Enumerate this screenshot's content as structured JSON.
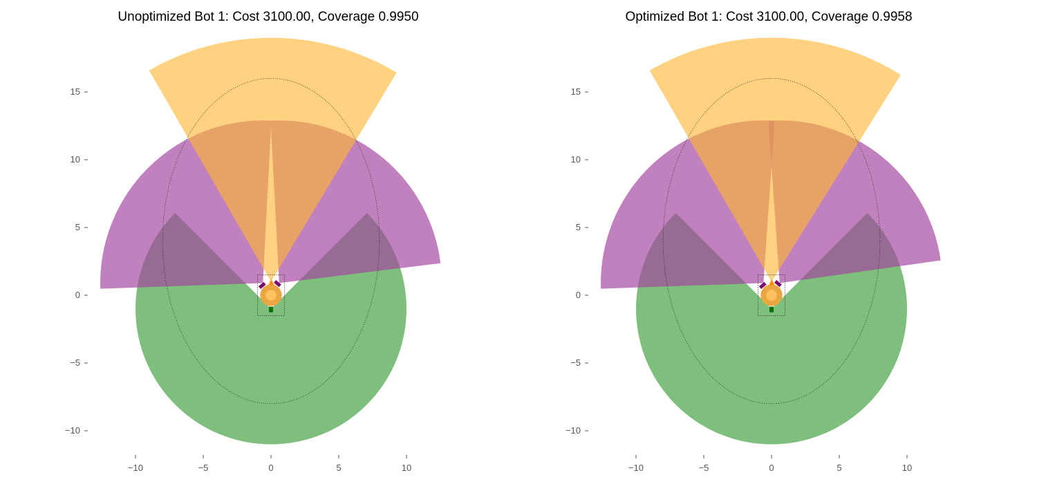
{
  "chart_data": [
    {
      "type": "sensor-coverage-plot",
      "title": "Unoptimized Bot 1: Cost 3100.00, Coverage 0.9950",
      "xlim": [
        -12.2,
        12.2
      ],
      "ylim": [
        -12.4,
        19.6
      ],
      "xticks": [
        -10,
        -5,
        0,
        5,
        10
      ],
      "xtick_labels": [
        "−10",
        "−5",
        "0",
        "5",
        "10"
      ],
      "yticks": [
        -10,
        -5,
        0,
        5,
        10,
        15
      ],
      "ytick_labels": [
        "−10",
        "−5",
        "0",
        "5",
        "10",
        "15"
      ],
      "grid": false,
      "target_ellipse": {
        "center": [
          0,
          4
        ],
        "rx": 8,
        "ry": 12,
        "style": "dotted"
      },
      "body_box": {
        "x0": -1,
        "x1": 1,
        "y0": -1.5,
        "y1": 1.5
      },
      "body_circles": [
        {
          "center": [
            0,
            0
          ],
          "r": 0.8,
          "color": "#e9a641"
        },
        {
          "center": [
            0,
            0
          ],
          "r": 0.4,
          "color": "#ffc060"
        }
      ],
      "sectors": [
        {
          "name": "green",
          "color": "#4ca64c",
          "center": [
            0,
            -1.0
          ],
          "r": 10.0,
          "start_deg": 135,
          "end_deg": 405,
          "opacity": 0.72
        },
        {
          "name": "purple-left",
          "color": "#a3449f",
          "center": [
            -0.6,
            0.9
          ],
          "r": 12.0,
          "start_deg": 87,
          "end_deg": 182,
          "opacity": 0.68
        },
        {
          "name": "purple-right",
          "color": "#a3449f",
          "center": [
            0.6,
            0.9
          ],
          "r": 12.0,
          "start_deg": 7,
          "end_deg": 93,
          "opacity": 0.68
        },
        {
          "name": "orange",
          "color": "#ffb733",
          "center": [
            0,
            1.0
          ],
          "r": 18.0,
          "start_deg": 59,
          "end_deg": 120,
          "opacity": 0.62
        }
      ],
      "sensor_markers": [
        {
          "type": "bar",
          "center": [
            -0.65,
            0.72
          ],
          "angle_deg": 40,
          "color": "#7a0e6e"
        },
        {
          "type": "bar",
          "center": [
            0.48,
            0.86
          ],
          "angle_deg": -40,
          "color": "#7a0e6e"
        },
        {
          "type": "triangle",
          "center": [
            0.02,
            0.92
          ],
          "color": "#ff8c00"
        },
        {
          "type": "square",
          "center": [
            0.0,
            -1.05
          ],
          "color": "#0b6e0b"
        }
      ]
    },
    {
      "type": "sensor-coverage-plot",
      "title": "Optimized Bot 1: Cost 3100.00, Coverage 0.9958",
      "xlim": [
        -12.2,
        12.2
      ],
      "ylim": [
        -12.4,
        19.6
      ],
      "xticks": [
        -10,
        -5,
        0,
        5,
        10
      ],
      "xtick_labels": [
        "−10",
        "−5",
        "0",
        "5",
        "10"
      ],
      "yticks": [
        -10,
        -5,
        0,
        5,
        10,
        15
      ],
      "ytick_labels": [
        "−10",
        "−5",
        "0",
        "5",
        "10",
        "15"
      ],
      "grid": false,
      "target_ellipse": {
        "center": [
          0,
          4
        ],
        "rx": 8,
        "ry": 12,
        "style": "dotted"
      },
      "body_box": {
        "x0": -1,
        "x1": 1,
        "y0": -1.5,
        "y1": 1.5
      },
      "body_circles": [
        {
          "center": [
            0,
            0
          ],
          "r": 0.8,
          "color": "#e9a641"
        },
        {
          "center": [
            0,
            0
          ],
          "r": 0.4,
          "color": "#ffc060"
        }
      ],
      "sectors": [
        {
          "name": "green",
          "color": "#4ca64c",
          "center": [
            0,
            -1.0
          ],
          "r": 10.0,
          "start_deg": 135,
          "end_deg": 405,
          "opacity": 0.72
        },
        {
          "name": "purple-left",
          "color": "#a3449f",
          "center": [
            -0.6,
            0.9
          ],
          "r": 12.0,
          "start_deg": 86,
          "end_deg": 182,
          "opacity": 0.68
        },
        {
          "name": "purple-right",
          "color": "#a3449f",
          "center": [
            0.6,
            0.9
          ],
          "r": 12.0,
          "start_deg": 8,
          "end_deg": 94,
          "opacity": 0.68
        },
        {
          "name": "orange",
          "color": "#ffb733",
          "center": [
            0,
            1.0
          ],
          "r": 18.0,
          "start_deg": 58,
          "end_deg": 120,
          "opacity": 0.62
        }
      ],
      "sensor_markers": [
        {
          "type": "bar",
          "center": [
            -0.65,
            0.72
          ],
          "angle_deg": 40,
          "color": "#7a0e6e"
        },
        {
          "type": "bar",
          "center": [
            0.48,
            0.86
          ],
          "angle_deg": -40,
          "color": "#7a0e6e"
        },
        {
          "type": "triangle",
          "center": [
            0.02,
            0.92
          ],
          "color": "#ff8c00"
        },
        {
          "type": "square",
          "center": [
            0.0,
            -1.05
          ],
          "color": "#0b6e0b"
        }
      ]
    }
  ]
}
